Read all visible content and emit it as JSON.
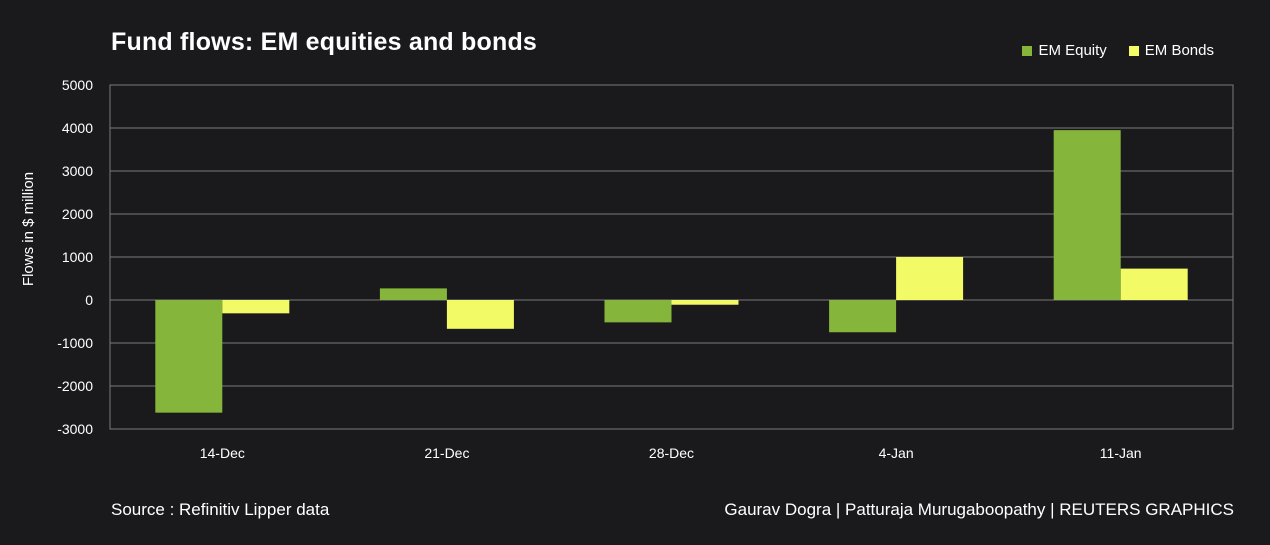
{
  "title": "Fund flows: EM equities and bonds",
  "source": "Source : Refinitiv Lipper data",
  "credit": "Gaurav Dogra | Patturaja Murugaboopathy | REUTERS GRAPHICS",
  "colors": {
    "background": "#1a1a1c",
    "equity": "#86b53b",
    "bonds": "#f2fa66",
    "grid": "#7a7a7a"
  },
  "chart_data": {
    "type": "bar",
    "title": "Fund flows: EM equities and bonds",
    "ylabel": "Flows in $ million",
    "xlabel": "",
    "categories": [
      "14-Dec",
      "21-Dec",
      "28-Dec",
      "4-Jan",
      "11-Jan"
    ],
    "series": [
      {
        "name": "EM Equity",
        "color": "#86b53b",
        "values": [
          -2620,
          270,
          -520,
          -750,
          3950
        ]
      },
      {
        "name": "EM Bonds",
        "color": "#f2fa66",
        "values": [
          -310,
          -670,
          -110,
          1000,
          730
        ]
      }
    ],
    "ylim": [
      -3000,
      5000
    ],
    "yticks": [
      5000,
      4000,
      3000,
      2000,
      1000,
      0,
      -1000,
      -2000,
      -3000
    ],
    "grid": true,
    "legend": "top-right"
  }
}
